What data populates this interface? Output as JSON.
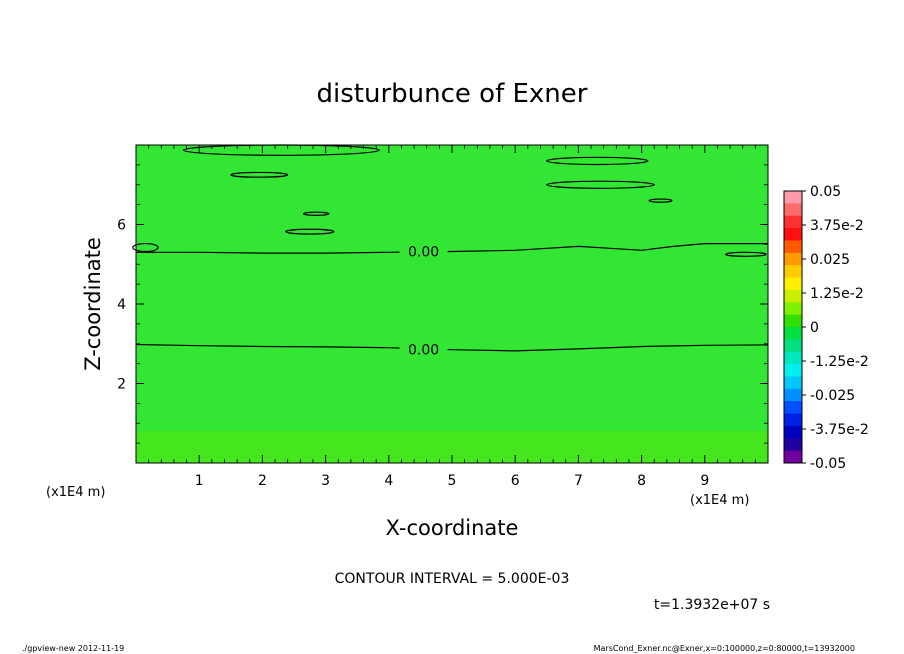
{
  "chart_data": {
    "type": "heatmap",
    "title": "disturbunce of Exner",
    "xlabel": "X-coordinate",
    "ylabel": "Z-coordinate",
    "x_unit": "(x1E4 m)",
    "y_unit": "(x1E4 m)",
    "xlim": [
      0,
      10
    ],
    "ylim": [
      0,
      8
    ],
    "x_ticks": [
      "1",
      "2",
      "3",
      "4",
      "5",
      "6",
      "7",
      "8",
      "9"
    ],
    "y_ticks": [
      "2",
      "4",
      "6"
    ],
    "contour_label": "0.00",
    "contour_interval_text": "CONTOUR INTERVAL = 5.000E-03",
    "time_text": "t=1.3932e+07 s",
    "colorbar": {
      "min": -0.05,
      "max": 0.05,
      "labels": [
        "0.05",
        "3.75e-2",
        "0.025",
        "1.25e-2",
        "0",
        "-1.25e-2",
        "-0.025",
        "-3.75e-2",
        "-0.05"
      ],
      "colors": [
        "#ff9aa8",
        "#ff6a6a",
        "#ff3030",
        "#ff1010",
        "#ff5a00",
        "#ff9a00",
        "#ffcc00",
        "#fff000",
        "#c8f000",
        "#80f000",
        "#30e000",
        "#00e040",
        "#00e080",
        "#00e8c0",
        "#00f0f0",
        "#00c8f8",
        "#0090ff",
        "#0050ff",
        "#0020e8",
        "#0000c0",
        "#2000a0",
        "#7000a0"
      ]
    },
    "field_colors": {
      "main": "#33e633",
      "bottom_band": "#46e61e"
    },
    "contours": [
      {
        "value": 0.0,
        "labeled": true,
        "points": [
          [
            0,
            2.98
          ],
          [
            1,
            2.95
          ],
          [
            2,
            2.93
          ],
          [
            3,
            2.92
          ],
          [
            4,
            2.9
          ],
          [
            5,
            2.85
          ],
          [
            6,
            2.82
          ],
          [
            7,
            2.87
          ],
          [
            8,
            2.93
          ],
          [
            9,
            2.96
          ],
          [
            10,
            2.97
          ]
        ]
      },
      {
        "value": 0.0,
        "labeled": true,
        "points": [
          [
            0,
            5.3
          ],
          [
            1,
            5.3
          ],
          [
            2,
            5.28
          ],
          [
            3,
            5.28
          ],
          [
            4,
            5.3
          ],
          [
            5,
            5.32
          ],
          [
            6,
            5.35
          ],
          [
            7,
            5.45
          ],
          [
            7.5,
            5.4
          ],
          [
            8,
            5.35
          ],
          [
            8.5,
            5.45
          ],
          [
            9,
            5.52
          ],
          [
            10,
            5.52
          ]
        ]
      }
    ],
    "closed_contours": [
      {
        "cx": 2.3,
        "cy": 7.88,
        "rx": 1.55,
        "ry": 0.13
      },
      {
        "cx": 7.3,
        "cy": 7.6,
        "rx": 0.8,
        "ry": 0.09
      },
      {
        "cx": 7.35,
        "cy": 7.0,
        "rx": 0.85,
        "ry": 0.09
      },
      {
        "cx": 1.95,
        "cy": 7.25,
        "rx": 0.45,
        "ry": 0.06
      },
      {
        "cx": 2.75,
        "cy": 5.82,
        "rx": 0.38,
        "ry": 0.06
      },
      {
        "cx": 2.85,
        "cy": 6.27,
        "rx": 0.2,
        "ry": 0.04
      },
      {
        "cx": 8.3,
        "cy": 6.6,
        "rx": 0.18,
        "ry": 0.04
      },
      {
        "cx": 0.15,
        "cy": 5.42,
        "rx": 0.2,
        "ry": 0.1
      },
      {
        "cx": 9.65,
        "cy": 5.25,
        "rx": 0.32,
        "ry": 0.05
      }
    ]
  },
  "footer": {
    "left": "./gpview-new   2012-11-19",
    "right": "MarsCond_Exner.nc@Exner,x=0:100000,z=0:80000,t=13932000"
  }
}
